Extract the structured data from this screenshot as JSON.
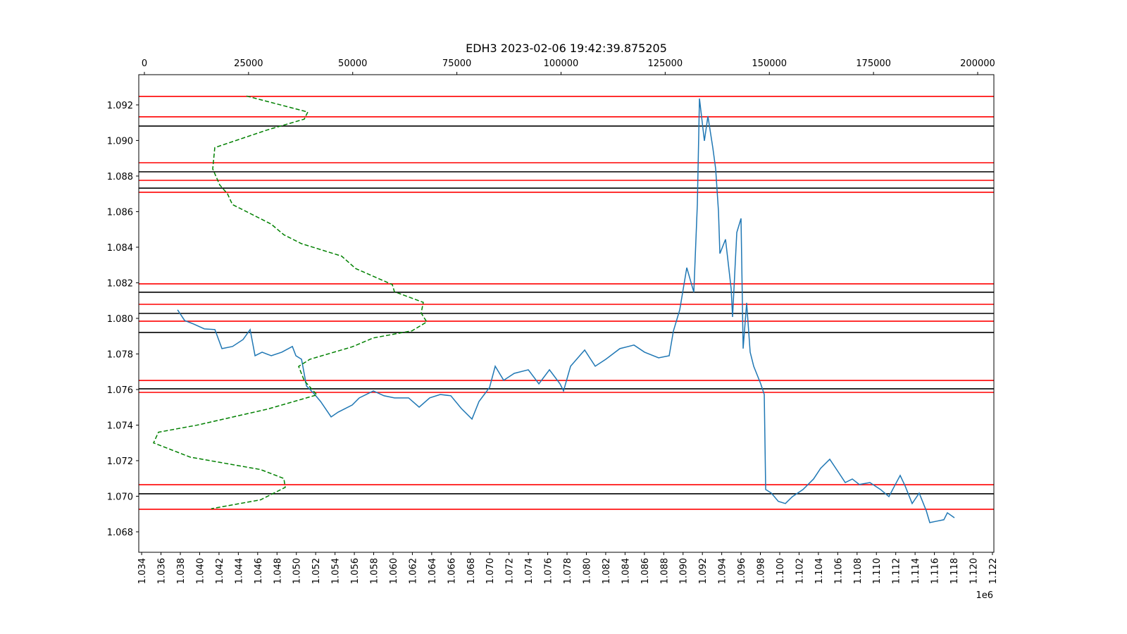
{
  "chart_data": {
    "type": "line",
    "title": "EDH3 2023-02-06 19:42:39.875205",
    "x_offset_label": "1e6",
    "xlim": [
      1033700,
      1122150
    ],
    "xticks": [
      {
        "value": 1034000,
        "label": "1.034"
      },
      {
        "value": 1036000,
        "label": "1.036"
      },
      {
        "value": 1038000,
        "label": "1.038"
      },
      {
        "value": 1040000,
        "label": "1.040"
      },
      {
        "value": 1042000,
        "label": "1.042"
      },
      {
        "value": 1044000,
        "label": "1.044"
      },
      {
        "value": 1046000,
        "label": "1.046"
      },
      {
        "value": 1048000,
        "label": "1.048"
      },
      {
        "value": 1050000,
        "label": "1.050"
      },
      {
        "value": 1052000,
        "label": "1.052"
      },
      {
        "value": 1054000,
        "label": "1.054"
      },
      {
        "value": 1056000,
        "label": "1.056"
      },
      {
        "value": 1058000,
        "label": "1.058"
      },
      {
        "value": 1060000,
        "label": "1.060"
      },
      {
        "value": 1062000,
        "label": "1.062"
      },
      {
        "value": 1064000,
        "label": "1.064"
      },
      {
        "value": 1066000,
        "label": "1.066"
      },
      {
        "value": 1068000,
        "label": "1.068"
      },
      {
        "value": 1070000,
        "label": "1.070"
      },
      {
        "value": 1072000,
        "label": "1.072"
      },
      {
        "value": 1074000,
        "label": "1.074"
      },
      {
        "value": 1076000,
        "label": "1.076"
      },
      {
        "value": 1078000,
        "label": "1.078"
      },
      {
        "value": 1080000,
        "label": "1.080"
      },
      {
        "value": 1082000,
        "label": "1.082"
      },
      {
        "value": 1084000,
        "label": "1.084"
      },
      {
        "value": 1086000,
        "label": "1.086"
      },
      {
        "value": 1088000,
        "label": "1.088"
      },
      {
        "value": 1090000,
        "label": "1.090"
      },
      {
        "value": 1092000,
        "label": "1.092"
      },
      {
        "value": 1094000,
        "label": "1.094"
      },
      {
        "value": 1096000,
        "label": "1.096"
      },
      {
        "value": 1098000,
        "label": "1.098"
      },
      {
        "value": 1100000,
        "label": "1.100"
      },
      {
        "value": 1102000,
        "label": "1.102"
      },
      {
        "value": 1104000,
        "label": "1.104"
      },
      {
        "value": 1106000,
        "label": "1.106"
      },
      {
        "value": 1108000,
        "label": "1.108"
      },
      {
        "value": 1110000,
        "label": "1.110"
      },
      {
        "value": 1112000,
        "label": "1.112"
      },
      {
        "value": 1114000,
        "label": "1.114"
      },
      {
        "value": 1116000,
        "label": "1.116"
      },
      {
        "value": 1118000,
        "label": "1.118"
      },
      {
        "value": 1120000,
        "label": "1.120"
      },
      {
        "value": 1122000,
        "label": "1.122"
      }
    ],
    "x2lim": [
      -1350,
      203890
    ],
    "x2ticks": [
      0,
      25000,
      50000,
      75000,
      100000,
      125000,
      150000,
      175000,
      200000
    ],
    "ylim": [
      1.06685,
      1.0937
    ],
    "yticks": [
      1.068,
      {
        "value": 1.07,
        "label": "1.070"
      },
      1.072,
      1.074,
      1.076,
      1.078,
      {
        "value": 1.08,
        "label": "1.080"
      },
      1.082,
      1.084,
      1.086,
      1.088,
      {
        "value": 1.09,
        "label": "1.090"
      },
      1.092
    ],
    "hlines": [
      {
        "value": 1.09248,
        "color": "#ff0000"
      },
      {
        "value": 1.09133,
        "color": "#ff0000"
      },
      {
        "value": 1.09081,
        "color": "#000000"
      },
      {
        "value": 1.08875,
        "color": "#ff0000"
      },
      {
        "value": 1.08824,
        "color": "#000000"
      },
      {
        "value": 1.08776,
        "color": "#ff0000"
      },
      {
        "value": 1.08732,
        "color": "#000000"
      },
      {
        "value": 1.08709,
        "color": "#ff0000"
      },
      {
        "value": 1.08194,
        "color": "#ff0000"
      },
      {
        "value": 1.08147,
        "color": "#000000"
      },
      {
        "value": 1.08079,
        "color": "#ff0000"
      },
      {
        "value": 1.08028,
        "color": "#000000"
      },
      {
        "value": 1.07984,
        "color": "#ff0000"
      },
      {
        "value": 1.07921,
        "color": "#000000"
      },
      {
        "value": 1.07651,
        "color": "#ff0000"
      },
      {
        "value": 1.07604,
        "color": "#000000"
      },
      {
        "value": 1.07584,
        "color": "#ff0000"
      },
      {
        "value": 1.07065,
        "color": "#ff0000"
      },
      {
        "value": 1.07014,
        "color": "#000000"
      },
      {
        "value": 1.06927,
        "color": "#ff0000"
      }
    ],
    "series": [
      {
        "color": "#1f77b4",
        "x": [
          1037715,
          1038444,
          1039391,
          1040484,
          1041576,
          1042305,
          1043398,
          1044490,
          1045219,
          1045729,
          1046457,
          1047404,
          1048497,
          1049590,
          1049954,
          1050537,
          1051047,
          1051775,
          1052504,
          1053597,
          1054325,
          1055782,
          1056511,
          1057968,
          1059060,
          1060153,
          1061610,
          1062703,
          1063796,
          1064888,
          1065981,
          1067074,
          1068167,
          1068895,
          1069988,
          1070571,
          1071445,
          1072538,
          1073995,
          1075087,
          1076180,
          1077273,
          1077637,
          1078366,
          1079823,
          1080915,
          1082008,
          1083465,
          1084922,
          1086015,
          1087472,
          1088565,
          1089002,
          1089657,
          1090386,
          1091114,
          1091479,
          1091697,
          1092207,
          1092571,
          1093081,
          1093373,
          1093664,
          1093810,
          1094393,
          1094976,
          1095121,
          1095558,
          1095995,
          1096214,
          1096578,
          1096942,
          1097307,
          1098034,
          1098399,
          1098545,
          1099127,
          1099856,
          1100584,
          1101313,
          1102406,
          1103499,
          1104227,
          1105174,
          1106049,
          1106777,
          1107506,
          1108234,
          1109327,
          1110420,
          1111294,
          1111877,
          1112459,
          1112969,
          1113698,
          1114426,
          1115155,
          1115519,
          1116248,
          1116976,
          1117340,
          1118069
        ],
        "values": [
          1.08048,
          1.07988,
          1.07968,
          1.07941,
          1.07937,
          1.0783,
          1.07842,
          1.07881,
          1.07937,
          1.0779,
          1.0781,
          1.0779,
          1.0781,
          1.07842,
          1.0779,
          1.0777,
          1.0762,
          1.0758,
          1.07533,
          1.07446,
          1.07473,
          1.07513,
          1.07553,
          1.07592,
          1.07565,
          1.07553,
          1.07553,
          1.07501,
          1.07553,
          1.07572,
          1.07565,
          1.07493,
          1.07434,
          1.07533,
          1.07612,
          1.07731,
          1.07652,
          1.07691,
          1.07711,
          1.07632,
          1.07711,
          1.07632,
          1.07592,
          1.07731,
          1.07822,
          1.07731,
          1.0777,
          1.0783,
          1.0785,
          1.0781,
          1.07778,
          1.0779,
          1.07929,
          1.08048,
          1.08285,
          1.08147,
          1.08642,
          1.09236,
          1.08998,
          1.09137,
          1.08958,
          1.0884,
          1.08602,
          1.08364,
          1.08444,
          1.08166,
          1.08008,
          1.08483,
          1.08562,
          1.0783,
          1.08087,
          1.0781,
          1.07731,
          1.07632,
          1.07572,
          1.07038,
          1.07018,
          1.06971,
          1.06959,
          1.06998,
          1.07038,
          1.07097,
          1.07157,
          1.07208,
          1.07137,
          1.07077,
          1.07097,
          1.07066,
          1.07077,
          1.07038,
          1.06998,
          1.07058,
          1.07117,
          1.07058,
          1.06959,
          1.07018,
          1.06919,
          1.06852,
          1.0686,
          1.06868,
          1.06907,
          1.06879
        ]
      },
      {
        "color": "#008000",
        "axis": "x2",
        "dashed": true,
        "x": [
          24510,
          39220,
          38370,
          29580,
          16900,
          16400,
          18090,
          19950,
          21130,
          30430,
          33470,
          37700,
          47330,
          50710,
          59500,
          60010,
          66940,
          66430,
          67780,
          64230,
          54940,
          49870,
          39720,
          37020,
          38370,
          41410,
          29580,
          12680,
          3380,
          2200,
          10990,
          27890,
          33470,
          33810,
          27890,
          16060
        ],
        "values": [
          1.0925,
          1.0916,
          1.0912,
          1.0906,
          1.0896,
          1.0884,
          1.0875,
          1.087,
          1.0864,
          1.0853,
          1.0847,
          1.0842,
          1.0835,
          1.0828,
          1.0819,
          1.0815,
          1.0809,
          1.0803,
          1.0798,
          1.0793,
          1.0789,
          1.0784,
          1.0777,
          1.0773,
          1.0765,
          1.0757,
          1.0749,
          1.074,
          1.0736,
          1.073,
          1.0722,
          1.0715,
          1.071,
          1.0705,
          1.0698,
          1.0693
        ]
      }
    ]
  }
}
